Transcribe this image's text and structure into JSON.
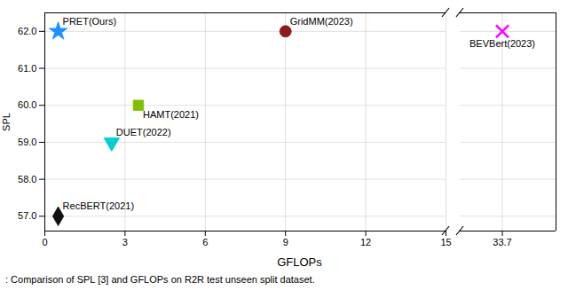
{
  "chart_data": [
    {
      "type": "scatter",
      "xlabel": "GFLOPs",
      "ylabel": "SPL",
      "caption": ": Comparison of SPL [3] and GFLOPs on R2R test unseen split dataset.",
      "xlim": [
        0,
        15
      ],
      "xticks": [
        0,
        3,
        6,
        9,
        12,
        15
      ],
      "ylim": [
        56.6,
        62.5
      ],
      "yticks": [
        57,
        58,
        59,
        60,
        61,
        62
      ],
      "grid": true,
      "series": [
        {
          "name": "PRET(Ours)",
          "color": "#1E90FF",
          "marker": "star",
          "x": [
            0.5
          ],
          "values": [
            62.0
          ]
        },
        {
          "name": "GridMM(2023)",
          "color": "#8B1A1A",
          "marker": "circle",
          "x": [
            9.0
          ],
          "values": [
            62.0
          ]
        },
        {
          "name": "HAMT(2021)",
          "color": "#7FBF00",
          "marker": "square",
          "x": [
            3.5
          ],
          "values": [
            60.0
          ]
        },
        {
          "name": "DUET(2022)",
          "color": "#00CFCF",
          "marker": "triangle_down",
          "x": [
            2.5
          ],
          "values": [
            59.0
          ]
        },
        {
          "name": "RecBERT(2021)",
          "color": "#111111",
          "marker": "diamond",
          "x": [
            0.5
          ],
          "values": [
            57.0
          ]
        }
      ]
    },
    {
      "type": "scatter",
      "xlim": [
        31.5,
        36.5
      ],
      "xticks": [
        33.7
      ],
      "ylim": [
        56.6,
        62.5
      ],
      "yticks": [
        57,
        58,
        59,
        60,
        61,
        62
      ],
      "grid": true,
      "tick_labels": "x",
      "series": [
        {
          "name": "BEVBert(2023)",
          "color": "#FF00FF",
          "marker": "x",
          "x": [
            33.7
          ],
          "values": [
            62.0
          ]
        }
      ]
    }
  ]
}
